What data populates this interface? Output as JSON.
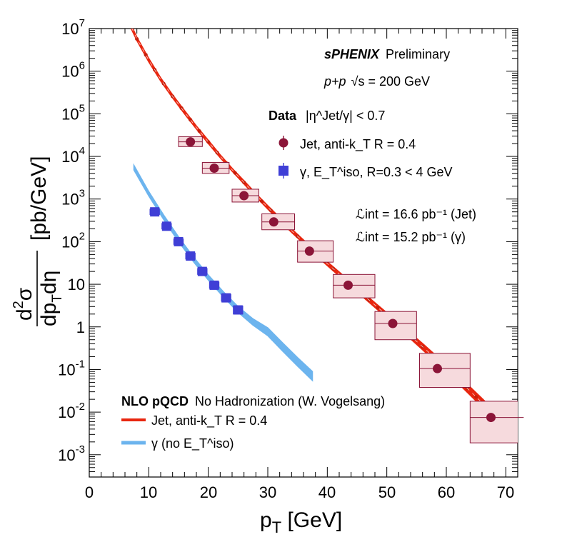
{
  "chart_data": {
    "type": "scatter",
    "experiment": "sPHENIX",
    "status": "Preliminary",
    "system_prefix": "p+p",
    "system_energy": "√s = 200 GeV",
    "xlabel": "p_T [GeV]",
    "ylabel": "d²σ/dp_T dη [pb/GeV]",
    "xlim": [
      0,
      72
    ],
    "ylim": [
      0.0003,
      10000000
    ],
    "yscale": "log",
    "x_tick_labels": [
      "0",
      "10",
      "20",
      "30",
      "40",
      "50",
      "60",
      "70"
    ],
    "y_tick_labels": [
      "10^-3",
      "10^-2",
      "10^-1",
      "1",
      "10",
      "10^2",
      "10^3",
      "10^4",
      "10^5",
      "10^6",
      "10^7"
    ],
    "data_header_bold": "Data",
    "data_header_cut": "|η^Jet/γ| < 0.7",
    "lumi_jet": "ℒint = 16.6 pb⁻¹ (Jet)",
    "lumi_gamma": "ℒint = 15.2 pb⁻¹ (γ)",
    "theory_header_bold": "NLO pQCD",
    "theory_header_rest": "No Hadronization (W. Vogelsang)",
    "legend_position": "top-right and bottom-left",
    "series": [
      {
        "name": "Jet, anti-k_T R = 0.4",
        "marker": "circle",
        "color": "#8b1538",
        "points": [
          {
            "x": 17.0,
            "y": 22000,
            "xlo": 15.0,
            "xhi": 19.0,
            "ylo": 17000,
            "yhi": 29000
          },
          {
            "x": 21.0,
            "y": 5300,
            "xlo": 19.0,
            "xhi": 23.5,
            "ylo": 4000,
            "yhi": 7200
          },
          {
            "x": 26.0,
            "y": 1200,
            "xlo": 24.0,
            "xhi": 28.5,
            "ylo": 850,
            "yhi": 1700
          },
          {
            "x": 31.0,
            "y": 290,
            "xlo": 29.0,
            "xhi": 34.5,
            "ylo": 190,
            "yhi": 450
          },
          {
            "x": 37.0,
            "y": 60,
            "xlo": 35.0,
            "xhi": 41.0,
            "ylo": 33,
            "yhi": 105
          },
          {
            "x": 43.5,
            "y": 9.5,
            "xlo": 41.0,
            "xhi": 48.0,
            "ylo": 4.8,
            "yhi": 17
          },
          {
            "x": 51.0,
            "y": 1.2,
            "xlo": 48.0,
            "xhi": 55.0,
            "ylo": 0.5,
            "yhi": 2.3
          },
          {
            "x": 58.5,
            "y": 0.105,
            "xlo": 55.5,
            "xhi": 64.0,
            "ylo": 0.038,
            "yhi": 0.24
          },
          {
            "x": 67.5,
            "y": 0.0075,
            "xlo": 64.0,
            "xhi": 73.0,
            "ylo": 0.0019,
            "yhi": 0.018
          }
        ]
      },
      {
        "name": "γ, E_T^iso, R=0.3 < 4 GeV",
        "marker": "square",
        "color": "#3f3fd6",
        "points": [
          {
            "x": 11.0,
            "y": 500,
            "xlo": 10.2,
            "xhi": 11.8,
            "ylo": 430,
            "yhi": 580
          },
          {
            "x": 13.0,
            "y": 230,
            "xlo": 12.2,
            "xhi": 13.8,
            "ylo": 198,
            "yhi": 267
          },
          {
            "x": 15.0,
            "y": 100,
            "xlo": 14.2,
            "xhi": 15.8,
            "ylo": 86,
            "yhi": 116
          },
          {
            "x": 17.0,
            "y": 46,
            "xlo": 16.2,
            "xhi": 17.8,
            "ylo": 39,
            "yhi": 54
          },
          {
            "x": 19.0,
            "y": 20,
            "xlo": 18.2,
            "xhi": 19.8,
            "ylo": 17,
            "yhi": 23.5
          },
          {
            "x": 21.0,
            "y": 9.5,
            "xlo": 20.2,
            "xhi": 21.8,
            "ylo": 8.0,
            "yhi": 11.3
          },
          {
            "x": 23.0,
            "y": 4.8,
            "xlo": 22.2,
            "xhi": 23.8,
            "ylo": 4.0,
            "yhi": 5.8
          },
          {
            "x": 25.0,
            "y": 2.5,
            "xlo": 24.2,
            "xhi": 25.8,
            "ylo": 2.0,
            "yhi": 3.1
          }
        ]
      }
    ],
    "theory_curves": [
      {
        "name": "Jet, anti-k_T R = 0.4",
        "color": "#e8260f",
        "x": [
          6,
          8,
          10,
          12,
          14,
          16,
          18,
          20,
          22,
          24,
          26,
          28,
          30,
          32,
          34,
          36,
          38,
          40,
          42,
          44,
          46,
          48,
          50,
          52,
          54,
          56,
          58,
          60,
          62,
          64,
          66,
          68,
          70
        ],
        "y_up": [
          25000000,
          6300000,
          2000000,
          700000,
          280000,
          120000,
          52000,
          24000,
          11000,
          5300,
          2700,
          1350,
          700,
          370,
          200,
          110,
          60,
          34,
          19.5,
          11,
          6.4,
          3.7,
          2.15,
          1.25,
          0.71,
          0.41,
          0.23,
          0.13,
          0.072,
          0.039,
          0.021,
          0.0112,
          0.0058
        ],
        "y_low": [
          20000000,
          5200000,
          1650000,
          590000,
          235000,
          100000,
          44000,
          20000,
          9300,
          4500,
          2250,
          1130,
          580,
          305,
          165,
          90,
          49,
          27.5,
          15.5,
          8.7,
          5.0,
          2.85,
          1.62,
          0.93,
          0.52,
          0.29,
          0.16,
          0.088,
          0.047,
          0.025,
          0.0132,
          0.0068,
          0.0034
        ],
        "x_dots": [
          6.5,
          8,
          9.5,
          11,
          12.5,
          14,
          15.5,
          17,
          18.5,
          20,
          21.5,
          23,
          24.5,
          26,
          27.5,
          29,
          30.5,
          32,
          33.5,
          35,
          36.5,
          38,
          39.5,
          41,
          42.5,
          44,
          45.5,
          47,
          48.5,
          50,
          51.5,
          53,
          54.5,
          56,
          57.5,
          59,
          60.5,
          62,
          63.5,
          65,
          66.5,
          68,
          69.5
        ],
        "legend_label": "Jet, anti-k_T R = 0.4"
      },
      {
        "name": "γ (no E_T^iso)",
        "color": "#6cb4ee",
        "x": [
          7.5,
          10,
          12.5,
          15,
          17.5,
          20,
          22.5,
          25,
          27.5,
          30,
          32.5,
          35,
          37.5
        ],
        "y_up": [
          6200,
          1500,
          420,
          130,
          44,
          16.5,
          6.8,
          3.0,
          1.55,
          0.95,
          0.42,
          0.19,
          0.09
        ],
        "y_low": [
          4800,
          1180,
          330,
          100,
          34,
          12.5,
          5.1,
          2.2,
          1.1,
          0.62,
          0.27,
          0.12,
          0.055
        ],
        "legend_label": "γ (no E_T^iso)"
      }
    ],
    "colors": {
      "jet_data": "#8b1538",
      "jet_box_fill": "#f6dadd",
      "jet_box_stroke": "#8b1538",
      "photon_data": "#3f3fd6",
      "photon_box_fill": "#c8c8f0",
      "jet_theory": "#e8260f",
      "photon_theory": "#6cb4ee"
    }
  }
}
